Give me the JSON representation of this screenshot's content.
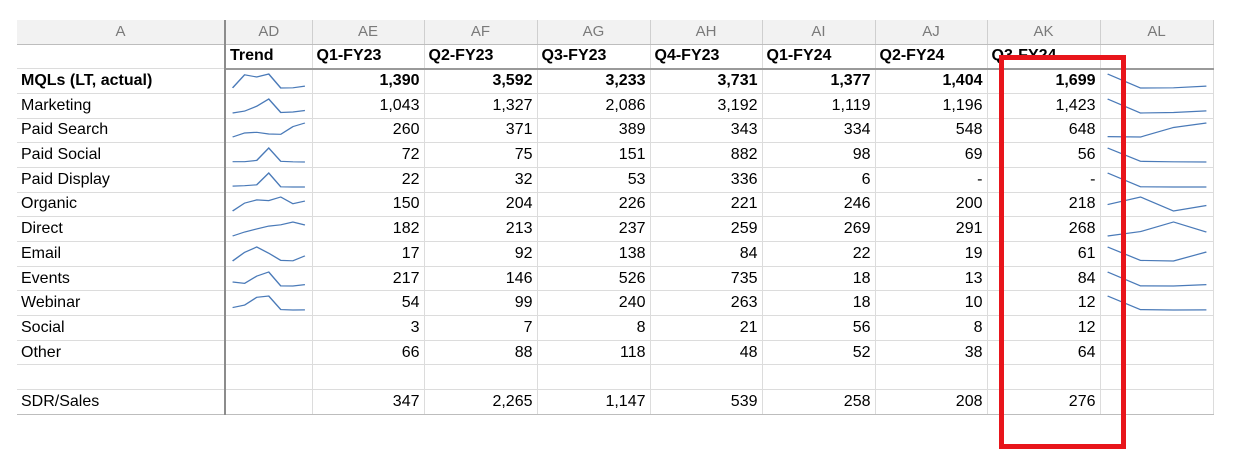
{
  "columns": [
    "A",
    "AD",
    "AE",
    "AF",
    "AG",
    "AH",
    "AI",
    "AJ",
    "AK",
    "AL"
  ],
  "header": {
    "trend": "Trend",
    "periods": [
      "Q1-FY23",
      "Q2-FY23",
      "Q3-FY23",
      "Q4-FY23",
      "Q1-FY24",
      "Q2-FY24",
      "Q3-FY24"
    ]
  },
  "rows": [
    {
      "label": "MQLs (LT, actual)",
      "values": [
        "1,390",
        "3,592",
        "3,233",
        "3,731",
        "1,377",
        "1,404",
        "1,699"
      ]
    },
    {
      "label": "Marketing",
      "values": [
        "1,043",
        "1,327",
        "2,086",
        "3,192",
        "1,119",
        "1,196",
        "1,423"
      ]
    },
    {
      "label": "Paid Search",
      "values": [
        "260",
        "371",
        "389",
        "343",
        "334",
        "548",
        "648"
      ]
    },
    {
      "label": "Paid Social",
      "values": [
        "72",
        "75",
        "151",
        "882",
        "98",
        "69",
        "56"
      ]
    },
    {
      "label": "Paid Display",
      "values": [
        "22",
        "32",
        "53",
        "336",
        "6",
        "-",
        "-"
      ]
    },
    {
      "label": "Organic",
      "values": [
        "150",
        "204",
        "226",
        "221",
        "246",
        "200",
        "218"
      ]
    },
    {
      "label": "Direct",
      "values": [
        "182",
        "213",
        "237",
        "259",
        "269",
        "291",
        "268"
      ]
    },
    {
      "label": "Email",
      "values": [
        "17",
        "92",
        "138",
        "84",
        "22",
        "19",
        "61"
      ]
    },
    {
      "label": "Events",
      "values": [
        "217",
        "146",
        "526",
        "735",
        "18",
        "13",
        "84"
      ]
    },
    {
      "label": "Webinar",
      "values": [
        "54",
        "99",
        "240",
        "263",
        "18",
        "10",
        "12"
      ]
    },
    {
      "label": "Social",
      "values": [
        "3",
        "7",
        "8",
        "21",
        "56",
        "8",
        "12"
      ]
    },
    {
      "label": "Other",
      "values": [
        "66",
        "88",
        "118",
        "48",
        "52",
        "38",
        "64"
      ]
    },
    {
      "label": "",
      "values": [
        "",
        "",
        "",
        "",
        "",
        "",
        ""
      ]
    },
    {
      "label": "SDR/Sales",
      "values": [
        "347",
        "2,265",
        "1,147",
        "539",
        "258",
        "208",
        "276"
      ]
    }
  ],
  "sparkline_color": "#4a7ab8",
  "highlight_color": "#e8151b"
}
